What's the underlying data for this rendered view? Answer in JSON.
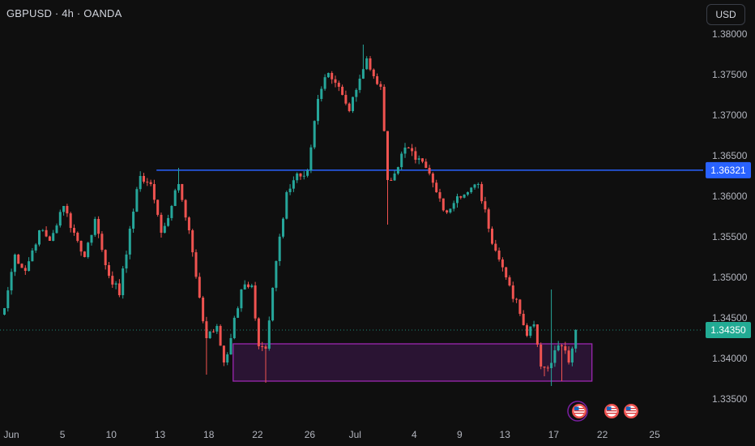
{
  "header": {
    "symbol_title": "GBPUSD · 4h · OANDA"
  },
  "toolbar": {
    "currency_label": "USD"
  },
  "colors": {
    "background": "#0f0f0f",
    "up_candle": "#26a69a",
    "down_candle": "#ef5350",
    "horizontal_line": "#2962ff",
    "current_price_tag": "#22ab94",
    "zone_border": "#9c27b0",
    "zone_fill": "#2a1433",
    "event_flag": "#ef5350"
  },
  "chart_data": {
    "type": "candlestick",
    "symbol": "GBPUSD",
    "timeframe": "4h",
    "source": "OANDA",
    "x_ticks": [
      "Jun",
      "5",
      "10",
      "13",
      "18",
      "22",
      "26",
      "Jul",
      "4",
      "9",
      "13",
      "17",
      "22",
      "25"
    ],
    "y_ticks": [
      "1.38000",
      "1.37500",
      "1.37000",
      "1.36500",
      "1.36000",
      "1.35500",
      "1.35000",
      "1.34500",
      "1.34000",
      "1.33500"
    ],
    "ylim": [
      1.3325,
      1.3815
    ],
    "horizontal_line": {
      "price": 1.36321,
      "label": "1.36321"
    },
    "current_price": {
      "price": 1.3435,
      "label": "1.34350"
    },
    "support_zone": {
      "from_tick": "20 Jun",
      "to_tick": "19 Jul",
      "low": 1.3372,
      "high": 1.3418
    },
    "event_markers": 3,
    "path_anchors": [
      [
        0,
        1.3462
      ],
      [
        3,
        1.3528
      ],
      [
        6,
        1.3508
      ],
      [
        10,
        1.3558
      ],
      [
        13,
        1.3545
      ],
      [
        17,
        1.3588
      ],
      [
        20,
        1.3555
      ],
      [
        23,
        1.3525
      ],
      [
        26,
        1.3572
      ],
      [
        29,
        1.3515
      ],
      [
        33,
        1.3478
      ],
      [
        36,
        1.356
      ],
      [
        39,
        1.3625
      ],
      [
        42,
        1.3615
      ],
      [
        45,
        1.3555
      ],
      [
        48,
        1.3588
      ],
      [
        50,
        1.3615
      ],
      [
        53,
        1.3558
      ],
      [
        56,
        1.3475
      ],
      [
        58,
        1.3425
      ],
      [
        61,
        1.344
      ],
      [
        63,
        1.3395
      ],
      [
        65,
        1.3425
      ],
      [
        68,
        1.3485
      ],
      [
        71,
        1.349
      ],
      [
        73,
        1.3415
      ],
      [
        75,
        1.3412
      ],
      [
        78,
        1.352
      ],
      [
        81,
        1.3605
      ],
      [
        84,
        1.3628
      ],
      [
        87,
        1.3632
      ],
      [
        90,
        1.372
      ],
      [
        93,
        1.3752
      ],
      [
        96,
        1.3735
      ],
      [
        99,
        1.3705
      ],
      [
        102,
        1.3745
      ],
      [
        104,
        1.377
      ],
      [
        106,
        1.3748
      ],
      [
        108,
        1.3735
      ],
      [
        110,
        1.362
      ],
      [
        112,
        1.3628
      ],
      [
        115,
        1.366
      ],
      [
        118,
        1.3645
      ],
      [
        121,
        1.3635
      ],
      [
        124,
        1.3605
      ],
      [
        127,
        1.358
      ],
      [
        130,
        1.36
      ],
      [
        133,
        1.3605
      ],
      [
        136,
        1.3615
      ],
      [
        139,
        1.356
      ],
      [
        142,
        1.3522
      ],
      [
        145,
        1.349
      ],
      [
        148,
        1.3455
      ],
      [
        150,
        1.3428
      ],
      [
        152,
        1.3442
      ],
      [
        154,
        1.339
      ],
      [
        156,
        1.3388
      ],
      [
        158,
        1.341
      ],
      [
        160,
        1.3415
      ],
      [
        162,
        1.3395
      ],
      [
        164,
        1.3435
      ]
    ],
    "wicks": [
      {
        "index": 50,
        "high": 1.3635
      },
      {
        "index": 58,
        "low": 1.338
      },
      {
        "index": 75,
        "low": 1.337
      },
      {
        "index": 103,
        "high": 1.3787
      },
      {
        "index": 110,
        "low": 1.3565
      },
      {
        "index": 155,
        "low": 1.3378
      },
      {
        "index": 157,
        "high": 1.3485
      },
      {
        "index": 157,
        "low": 1.3366
      },
      {
        "index": 160,
        "low": 1.3372
      }
    ]
  }
}
